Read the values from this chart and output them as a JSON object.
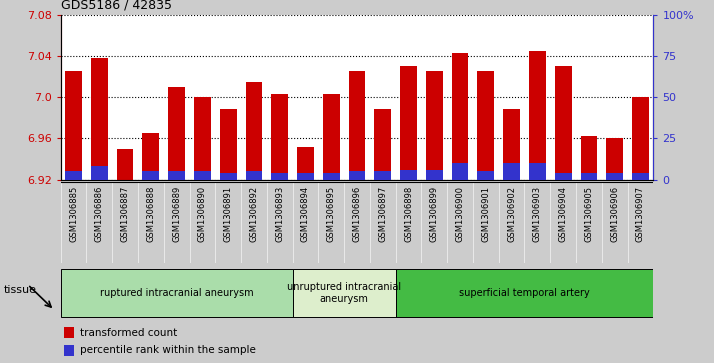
{
  "title": "GDS5186 / 42835",
  "samples": [
    "GSM1306885",
    "GSM1306886",
    "GSM1306887",
    "GSM1306888",
    "GSM1306889",
    "GSM1306890",
    "GSM1306891",
    "GSM1306892",
    "GSM1306893",
    "GSM1306894",
    "GSM1306895",
    "GSM1306896",
    "GSM1306897",
    "GSM1306898",
    "GSM1306899",
    "GSM1306900",
    "GSM1306901",
    "GSM1306902",
    "GSM1306903",
    "GSM1306904",
    "GSM1306905",
    "GSM1306906",
    "GSM1306907"
  ],
  "transformed_count": [
    7.025,
    7.038,
    6.95,
    6.965,
    7.01,
    7.0,
    6.988,
    7.015,
    7.003,
    6.952,
    7.003,
    7.025,
    6.988,
    7.03,
    7.025,
    7.043,
    7.025,
    6.988,
    7.045,
    7.03,
    6.962,
    6.96,
    7.0
  ],
  "percentile_rank": [
    5,
    8,
    0,
    5,
    5,
    5,
    4,
    5,
    4,
    4,
    4,
    5,
    5,
    6,
    6,
    10,
    5,
    10,
    10,
    4,
    4,
    4,
    4
  ],
  "ylim_left": [
    6.92,
    7.08
  ],
  "ylim_right": [
    0,
    100
  ],
  "yticks_left": [
    6.92,
    6.96,
    7.0,
    7.04,
    7.08
  ],
  "yticks_right": [
    0,
    25,
    50,
    75,
    100
  ],
  "ytick_labels_right": [
    "0",
    "25",
    "50",
    "75",
    "100%"
  ],
  "bar_color_red": "#cc0000",
  "bar_color_blue": "#3333cc",
  "tissue_groups": [
    {
      "label": "ruptured intracranial aneurysm",
      "start": 0,
      "end": 9,
      "color": "#aaddaa"
    },
    {
      "label": "unruptured intracranial\naneurysm",
      "start": 9,
      "end": 13,
      "color": "#ddeecc"
    },
    {
      "label": "superficial temporal artery",
      "start": 13,
      "end": 23,
      "color": "#44bb44"
    }
  ],
  "legend_items": [
    {
      "label": "transformed count",
      "color": "#cc0000"
    },
    {
      "label": "percentile rank within the sample",
      "color": "#3333cc"
    }
  ],
  "background_color": "#cccccc",
  "plot_bg_color": "#ffffff",
  "xticklabel_bg": "#cccccc",
  "tissue_label": "tissue"
}
